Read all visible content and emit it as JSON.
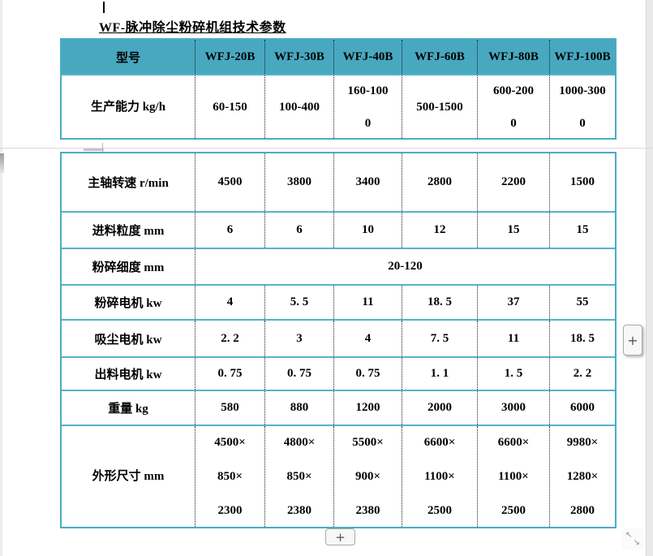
{
  "page": {
    "title": "WF-脉冲除尘粉碎机组技术参数"
  },
  "table": {
    "header": {
      "model_label": "型号",
      "models": [
        "WFJ-20B",
        "WFJ-30B",
        "WFJ-40B",
        "WFJ-60B",
        "WFJ-80B",
        "WFJ-100B"
      ]
    },
    "rows": [
      {
        "label": "生产能力 kg/h",
        "values": [
          "60-150",
          "100-400",
          "160-100\n0",
          "500-1500",
          "600-200\n0",
          "1000-300\n0"
        ]
      },
      {
        "label": "主轴转速 r/min",
        "values": [
          "4500",
          "3800",
          "3400",
          "2800",
          "2200",
          "1500"
        ]
      },
      {
        "label": "进料粒度 mm",
        "values": [
          "6",
          "6",
          "10",
          "12",
          "15",
          "15"
        ]
      },
      {
        "label": "粉碎细度 mm",
        "merged_value": "20-120"
      },
      {
        "label": "粉碎电机 kw",
        "values": [
          "4",
          "5. 5",
          "11",
          "18. 5",
          "37",
          "55"
        ]
      },
      {
        "label": "吸尘电机 kw",
        "values": [
          "2. 2",
          "3",
          "4",
          "7. 5",
          "11",
          "18. 5"
        ]
      },
      {
        "label": "出料电机 kw",
        "values": [
          "0. 75",
          "0. 75",
          "0. 75",
          "1. 1",
          "1. 5",
          "2. 2"
        ]
      },
      {
        "label": "重量 kg",
        "values": [
          "580",
          "880",
          "1200",
          "2000",
          "3000",
          "6000"
        ]
      },
      {
        "label": "外形尺寸 mm",
        "values": [
          "4500×\n850×\n2300",
          "4800×\n850×\n2380",
          "5500×\n900×\n2380",
          "6600×\n1100×\n2500",
          "6600×\n1100×\n2500",
          "9980×\n1280×\n2800"
        ]
      }
    ]
  },
  "controls": {
    "add_column_label": "+",
    "add_row_label": "+",
    "resize_arrow_nw": "↖",
    "resize_arrow_se": "↘"
  },
  "colors": {
    "header_fill": "#48a8c0",
    "table_border": "#4aacc5",
    "page_break_line": "#d9d9d9"
  }
}
